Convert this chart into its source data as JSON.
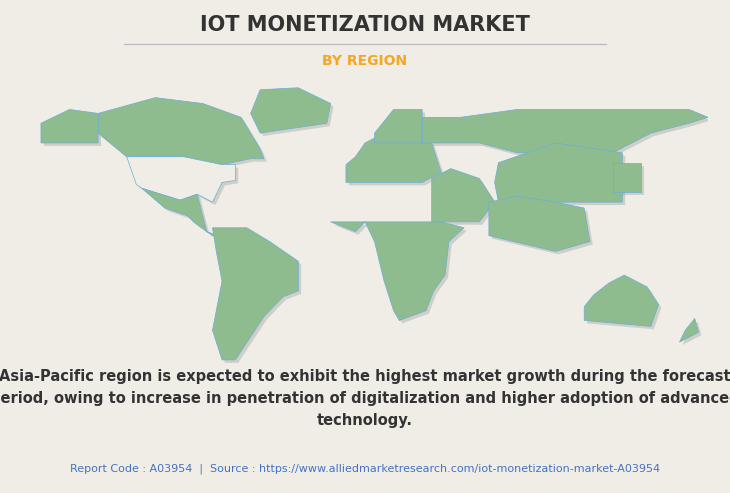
{
  "title": "IOT MONETIZATION MARKET",
  "subtitle": "BY REGION",
  "bg_color": "#f0ede6",
  "title_color": "#333333",
  "subtitle_color": "#f5a623",
  "map_default_color": "#8fbc8f",
  "map_highlight_color": "#f0ede6",
  "map_edge_color": "#6aaed6",
  "map_shadow_color": "#888888",
  "body_text_line1": "Asia-Pacific region is expected to exhibit the highest market growth during the forecast",
  "body_text_line2": "period, owing to increase in penetration of digitalization and higher adoption of advanced",
  "body_text_line3": "technology.",
  "footer_text": "Report Code : A03954  |  Source : https://www.alliedmarketresearch.com/iot-monetization-market-A03954",
  "footer_color": "#4472c4",
  "body_text_color": "#333333",
  "title_fontsize": 15,
  "subtitle_fontsize": 10,
  "body_fontsize": 10.5,
  "footer_fontsize": 8
}
